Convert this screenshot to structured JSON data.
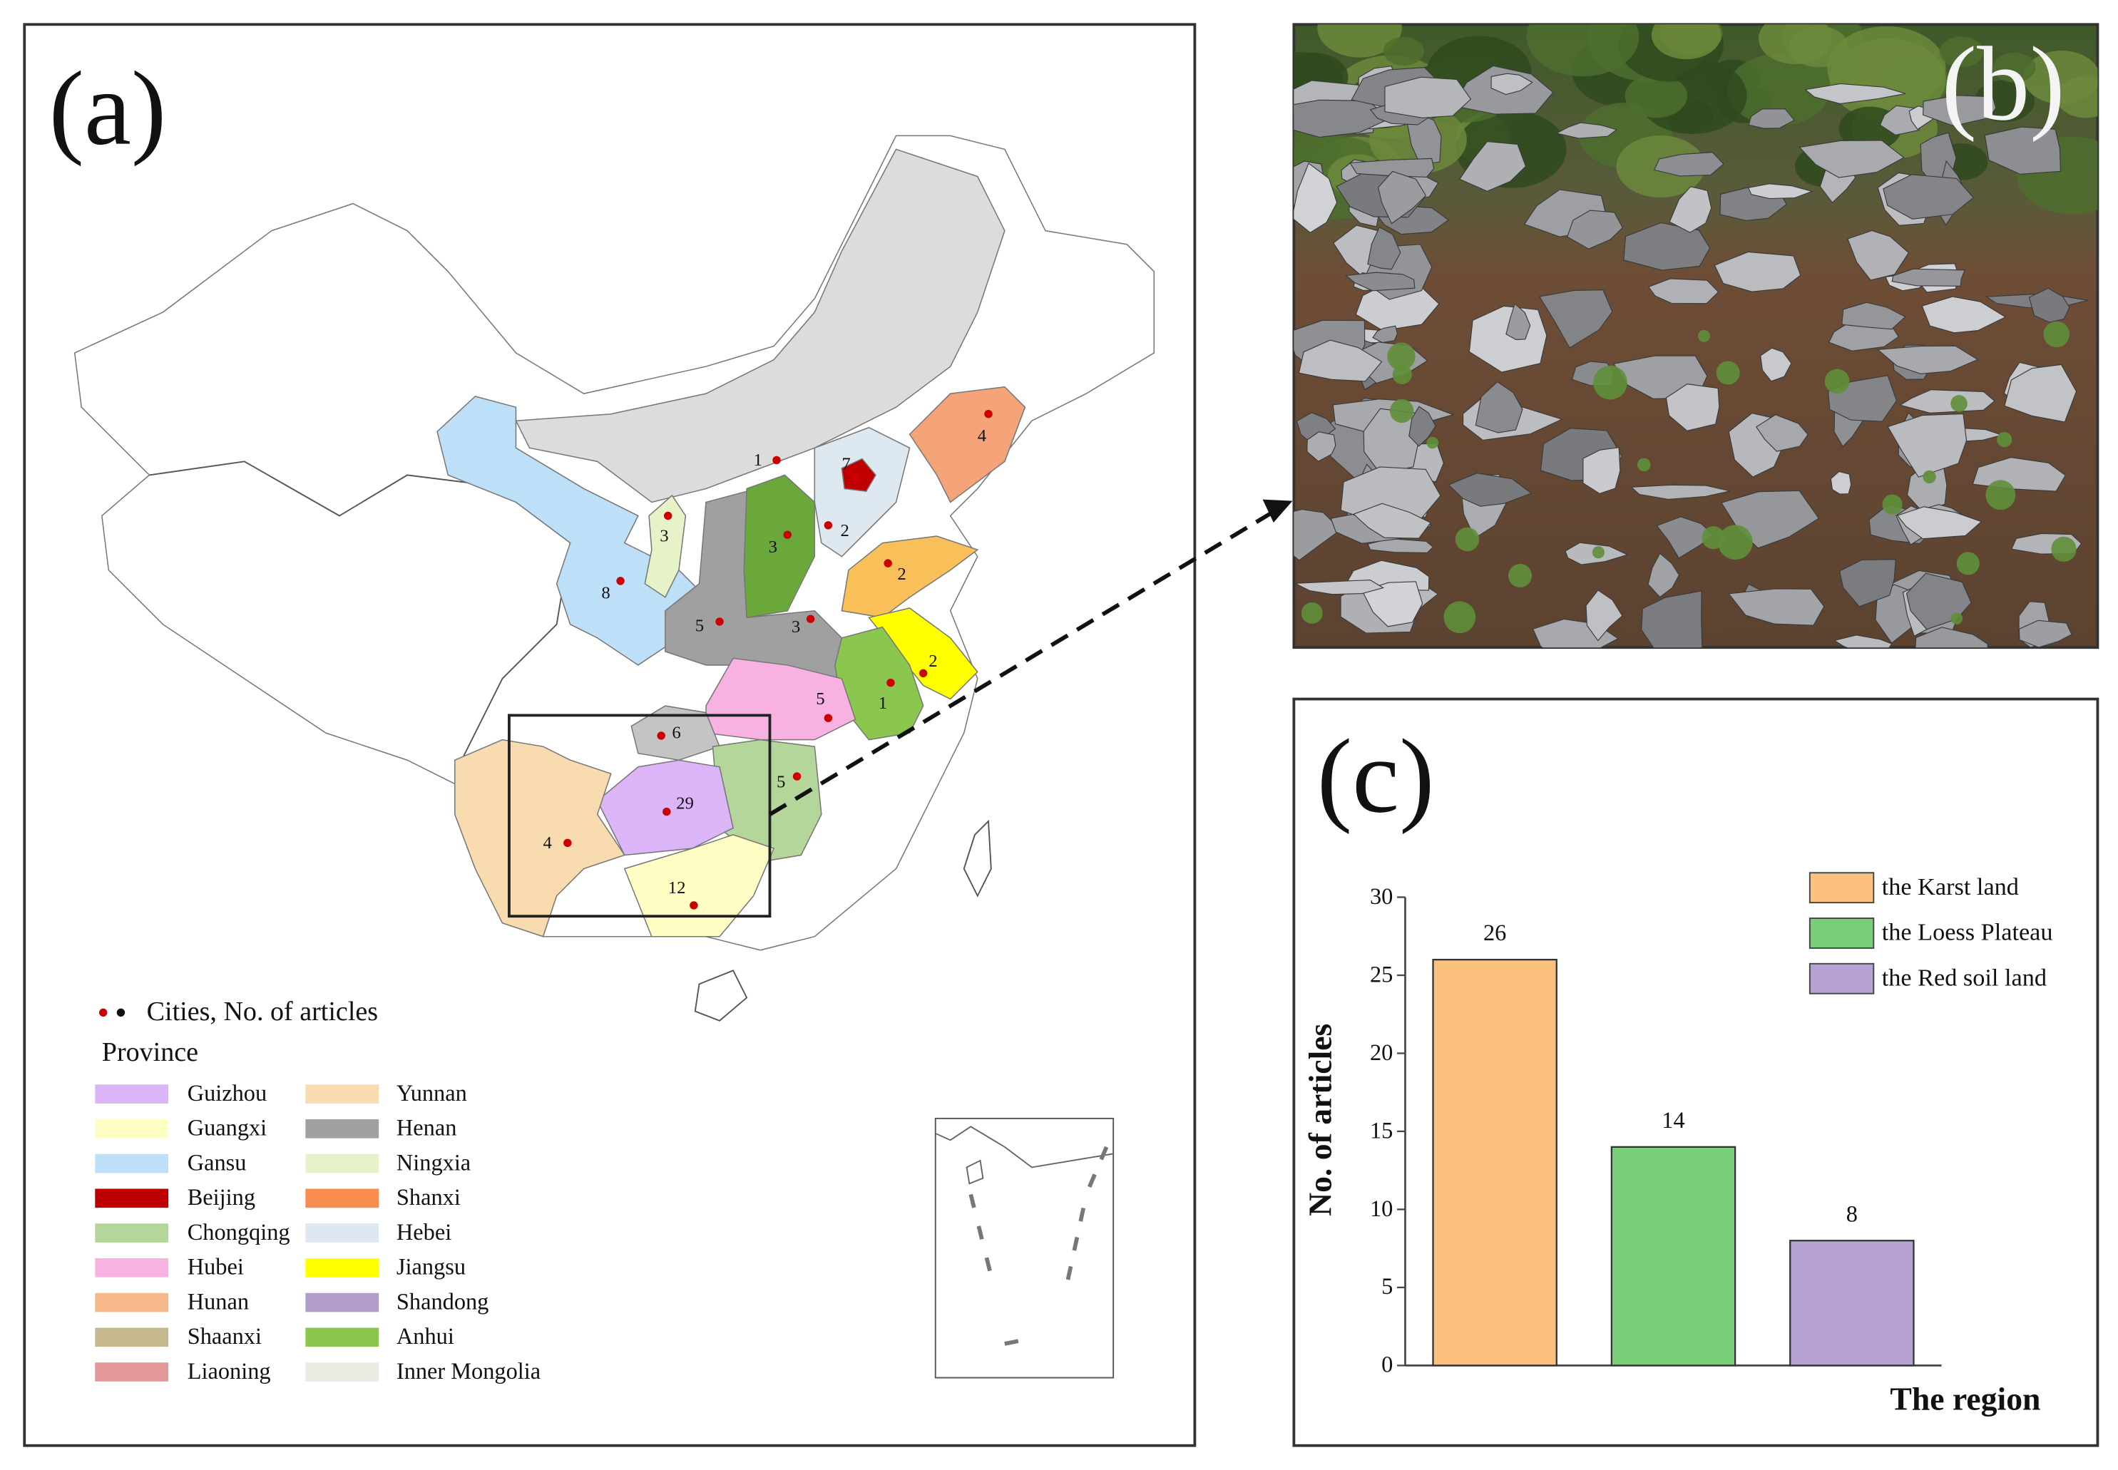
{
  "panels": {
    "a": "(a)",
    "b": "(b)",
    "c": "(c)"
  },
  "map": {
    "legend_cities": "Cities, No. of articles",
    "legend_province_title": "Province",
    "provinces": [
      {
        "name": "Guizhou",
        "color": "#dcb4f8"
      },
      {
        "name": "Guangxi",
        "color": "#fdfdc4"
      },
      {
        "name": "Gansu",
        "color": "#bde0f8"
      },
      {
        "name": "Beijing",
        "color": "#c00000"
      },
      {
        "name": "Chongqing",
        "color": "#b5d69a"
      },
      {
        "name": "Hubei",
        "color": "#f8b2e2"
      },
      {
        "name": "Hunan",
        "color": "#f7b98a"
      },
      {
        "name": "Shaanxi",
        "color": "#c7b98f"
      },
      {
        "name": "Liaoning",
        "color": "#e5999a"
      },
      {
        "name": "Yunnan",
        "color": "#f8dcb0"
      },
      {
        "name": "Henan",
        "color": "#a0a0a0"
      },
      {
        "name": "Ningxia",
        "color": "#e6f3c8"
      },
      {
        "name": "Shanxi",
        "color": "#f98d4f"
      },
      {
        "name": "Hebei",
        "color": "#dde8f0"
      },
      {
        "name": "Jiangsu",
        "color": "#ffff00"
      },
      {
        "name": "Shandong",
        "color": "#b09ec8"
      },
      {
        "name": "Anhui",
        "color": "#8bc64f"
      },
      {
        "name": "Inner Mongolia",
        "color": "#ebeae2"
      }
    ],
    "city_counts": [
      1,
      7,
      2,
      4,
      3,
      8,
      3,
      2,
      5,
      3,
      2,
      1,
      5,
      6,
      5,
      29,
      4,
      12
    ]
  },
  "chart_data": {
    "type": "bar",
    "categories": [
      "the Karst land",
      "the Loess Plateau",
      "the Red soil land"
    ],
    "values": [
      26,
      14,
      8
    ],
    "colors": [
      "#fcc07f",
      "#79cf78",
      "#b7a2d4"
    ],
    "x_label": "The region",
    "y_label": "No. of articles",
    "ylim": [
      0,
      30
    ],
    "yticks": [
      0,
      5,
      10,
      15,
      20,
      25,
      30
    ],
    "legend": "upper right"
  }
}
